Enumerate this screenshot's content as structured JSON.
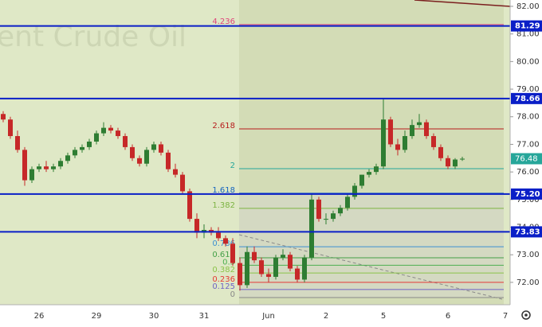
{
  "chart_data": {
    "type": "candlestick",
    "watermark": "ent Crude Oil",
    "up_color": "#2e7d32",
    "down_color": "#c62828",
    "categories": [
      null,
      null,
      null,
      null,
      null,
      "26",
      null,
      null,
      null,
      null,
      null,
      null,
      null,
      "29",
      null,
      null,
      null,
      null,
      null,
      null,
      null,
      "30",
      null,
      null,
      null,
      null,
      null,
      null,
      "31",
      null,
      null,
      null,
      null,
      null,
      null,
      null,
      null,
      "Jun",
      null,
      null,
      null,
      null,
      null,
      null,
      null,
      "2",
      null,
      null,
      null,
      null,
      null,
      null,
      null,
      "5",
      null,
      null,
      null,
      null,
      null,
      null,
      null,
      null,
      "6",
      null,
      null,
      null,
      null,
      null,
      null,
      null,
      "7"
    ],
    "open": [
      78.1,
      77.9,
      77.3,
      76.8,
      75.7,
      76.1,
      76.2,
      76.1,
      76.2,
      76.4,
      76.6,
      76.8,
      76.9,
      77.1,
      77.4,
      77.6,
      77.5,
      77.3,
      76.9,
      76.5,
      76.3,
      76.8,
      77.0,
      76.7,
      76.1,
      75.9,
      75.3,
      74.3,
      73.8,
      73.9,
      73.8,
      73.6,
      73.4,
      72.7,
      71.9,
      73.1,
      72.8,
      72.3,
      72.2,
      72.9,
      73.0,
      72.5,
      72.1,
      72.9,
      75.0,
      74.3,
      74.3,
      74.5,
      74.7,
      75.1,
      75.5,
      75.9,
      76.0,
      76.2,
      77.9,
      77.0,
      76.8,
      77.3,
      77.7,
      77.8,
      77.3,
      76.9,
      76.5,
      76.2,
      76.45,
      null,
      null,
      null,
      null,
      null,
      null
    ],
    "high": [
      78.2,
      78.0,
      77.5,
      76.9,
      76.2,
      76.3,
      76.4,
      76.3,
      76.5,
      76.7,
      76.9,
      77.0,
      77.2,
      77.5,
      77.8,
      77.7,
      77.6,
      77.4,
      77.0,
      76.6,
      76.9,
      77.1,
      77.1,
      76.8,
      76.3,
      76.0,
      75.4,
      74.5,
      74.1,
      74.0,
      74.0,
      73.7,
      73.6,
      72.9,
      73.3,
      73.3,
      72.9,
      72.5,
      73.0,
      73.2,
      73.1,
      72.6,
      73.0,
      75.2,
      75.1,
      74.5,
      74.6,
      74.8,
      75.2,
      75.6,
      75.9,
      76.1,
      76.3,
      78.66,
      78.0,
      77.2,
      77.5,
      77.9,
      78.1,
      77.9,
      77.4,
      77.0,
      76.6,
      76.5,
      76.55,
      null,
      null,
      null,
      null,
      null,
      null
    ],
    "low": [
      77.8,
      77.2,
      76.7,
      75.5,
      75.6,
      76.0,
      76.0,
      76.0,
      76.1,
      76.3,
      76.5,
      76.7,
      76.8,
      77.0,
      77.3,
      77.4,
      77.2,
      76.8,
      76.4,
      76.2,
      76.2,
      76.7,
      76.6,
      76.0,
      75.8,
      75.2,
      74.2,
      73.6,
      73.6,
      73.7,
      73.5,
      73.3,
      72.6,
      71.7,
      71.8,
      72.7,
      72.2,
      72.0,
      72.1,
      72.8,
      72.4,
      72.0,
      72.0,
      72.8,
      74.2,
      74.1,
      74.2,
      74.4,
      74.6,
      75.0,
      75.4,
      75.8,
      75.9,
      76.1,
      76.9,
      76.6,
      76.7,
      77.2,
      77.6,
      77.2,
      76.8,
      76.4,
      76.1,
      76.1,
      76.4,
      null,
      null,
      null,
      null,
      null,
      null
    ],
    "close": [
      77.9,
      77.3,
      76.8,
      75.7,
      76.1,
      76.2,
      76.1,
      76.2,
      76.4,
      76.6,
      76.8,
      76.9,
      77.1,
      77.4,
      77.6,
      77.5,
      77.3,
      76.9,
      76.5,
      76.3,
      76.8,
      77.0,
      76.7,
      76.1,
      75.9,
      75.3,
      74.3,
      73.8,
      73.9,
      73.8,
      73.6,
      73.4,
      72.7,
      71.9,
      73.1,
      72.8,
      72.3,
      72.2,
      72.9,
      73.0,
      72.5,
      72.1,
      72.9,
      75.0,
      74.3,
      74.3,
      74.5,
      74.7,
      75.1,
      75.5,
      75.9,
      76.0,
      76.2,
      77.9,
      77.0,
      76.8,
      77.3,
      77.7,
      77.8,
      77.3,
      76.9,
      76.5,
      76.2,
      76.45,
      76.48,
      null,
      null,
      null,
      null,
      null,
      null
    ],
    "ylim": [
      71.19,
      82.23
    ],
    "yticks": [
      {
        "value": 72,
        "label": "72.00"
      },
      {
        "value": 73,
        "label": "73.00"
      },
      {
        "value": 74,
        "label": "74.00"
      },
      {
        "value": 75,
        "label": "75.00"
      },
      {
        "value": 76,
        "label": "76.00"
      },
      {
        "value": 77,
        "label": "77.00"
      },
      {
        "value": 78,
        "label": "78.00"
      },
      {
        "value": 79,
        "label": "79.00"
      },
      {
        "value": 80,
        "label": "80.00"
      },
      {
        "value": 81,
        "label": "81.00"
      },
      {
        "value": 82,
        "label": "82.00"
      }
    ],
    "levels_color": "#0a1fc7",
    "levels": [
      {
        "value": 81.29,
        "label": "81.29"
      },
      {
        "value": 78.66,
        "label": "78.66"
      },
      {
        "value": 75.2,
        "label": "75.20"
      },
      {
        "value": 73.83,
        "label": "73.83"
      }
    ],
    "last_price": {
      "value": 76.48,
      "label": "76.48"
    },
    "last_price_color": "#26a69a",
    "fib_levels": [
      {
        "level": 4.236,
        "price": 81.34,
        "color": "#e0457b"
      },
      {
        "level": 2.618,
        "price": 77.56,
        "color": "#b71c1c"
      },
      {
        "level": 2,
        "price": 76.12,
        "color": "#26a69a"
      },
      {
        "level": 1.618,
        "price": 75.23,
        "color": "#1565c0"
      },
      {
        "level": 1.382,
        "price": 74.68,
        "color": "#7cb342"
      },
      {
        "level": 0.786,
        "price": 73.29,
        "color": "#3d8fd1"
      },
      {
        "level": 0.618,
        "price": 72.89,
        "color": "#43a047"
      },
      {
        "level": 0.5,
        "price": 72.62,
        "color": "#4caf50"
      },
      {
        "level": 0.382,
        "price": 72.34,
        "color": "#8bc34a"
      },
      {
        "level": 0.236,
        "price": 72.0,
        "color": "#e53935"
      },
      {
        "level": 0.125,
        "price": 71.74,
        "color": "#6f63c5"
      },
      {
        "level": 0,
        "price": 71.45,
        "color": "#888888"
      }
    ]
  }
}
